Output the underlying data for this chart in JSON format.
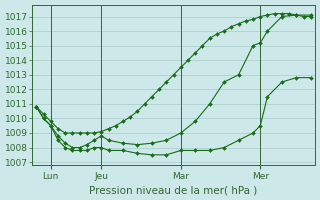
{
  "title": "Pression niveau de la mer( hPa )",
  "bg_color": "#cce8e8",
  "grid_color": "#aacccc",
  "line_color": "#1a6b1a",
  "ylim": [
    1006.8,
    1017.8
  ],
  "yticks": [
    1007,
    1008,
    1009,
    1010,
    1011,
    1012,
    1013,
    1014,
    1015,
    1016,
    1017
  ],
  "xlim": [
    -0.3,
    19.3
  ],
  "xtick_labels": [
    "Lun",
    "Jeu",
    "Mar",
    "Mer"
  ],
  "xtick_positions": [
    1,
    4.5,
    10,
    15.5
  ],
  "vline_positions": [
    1,
    4.5,
    10,
    15.5
  ],
  "series": [
    {
      "x": [
        0,
        0.5,
        1,
        1.5,
        2,
        2.5,
        3,
        3.5,
        4,
        4.5,
        5,
        5.5,
        6,
        6.5,
        7,
        7.5,
        8,
        8.5,
        9,
        9.5,
        10,
        10.5,
        11,
        11.5,
        12,
        12.5,
        13,
        13.5,
        14,
        14.5,
        15,
        15.5,
        16,
        16.5,
        17,
        17.5,
        18,
        18.5,
        19
      ],
      "y": [
        1010.8,
        1010.3,
        1009.8,
        1009.3,
        1009.0,
        1009.0,
        1009.0,
        1009.0,
        1009.0,
        1009.1,
        1009.3,
        1009.5,
        1009.8,
        1010.1,
        1010.5,
        1011.0,
        1011.5,
        1012.0,
        1012.5,
        1013.0,
        1013.5,
        1014.0,
        1014.5,
        1015.0,
        1015.5,
        1015.8,
        1016.0,
        1016.3,
        1016.5,
        1016.7,
        1016.8,
        1017.0,
        1017.1,
        1017.2,
        1017.2,
        1017.2,
        1017.1,
        1017.0,
        1017.0
      ]
    },
    {
      "x": [
        0,
        0.5,
        1,
        1.5,
        2,
        2.5,
        3,
        3.5,
        4,
        4.5,
        5,
        6,
        7,
        8,
        9,
        10,
        11,
        12,
        13,
        14,
        15,
        15.5,
        16,
        17,
        18,
        19
      ],
      "y": [
        1010.8,
        1010.0,
        1009.5,
        1008.8,
        1008.3,
        1008.0,
        1008.0,
        1008.2,
        1008.5,
        1008.8,
        1008.5,
        1008.3,
        1008.2,
        1008.3,
        1008.5,
        1009.0,
        1009.8,
        1011.0,
        1012.5,
        1013.0,
        1015.0,
        1015.2,
        1016.0,
        1017.0,
        1017.1,
        1017.1
      ]
    },
    {
      "x": [
        0,
        0.5,
        1,
        1.5,
        2,
        2.5,
        3,
        3.5,
        4,
        4.5,
        5,
        6,
        7,
        8,
        9,
        10,
        11,
        12,
        13,
        14,
        15,
        15.5,
        16,
        17,
        18,
        19
      ],
      "y": [
        1010.8,
        1010.0,
        1009.5,
        1008.5,
        1008.0,
        1007.8,
        1007.8,
        1007.8,
        1008.0,
        1008.0,
        1007.8,
        1007.8,
        1007.6,
        1007.5,
        1007.5,
        1007.8,
        1007.8,
        1007.8,
        1008.0,
        1008.5,
        1009.0,
        1009.5,
        1011.5,
        1012.5,
        1012.8,
        1012.8
      ]
    }
  ],
  "ylabel_fontsize": 6,
  "xlabel_fontsize": 7.5,
  "tick_labelsize": 6.5
}
